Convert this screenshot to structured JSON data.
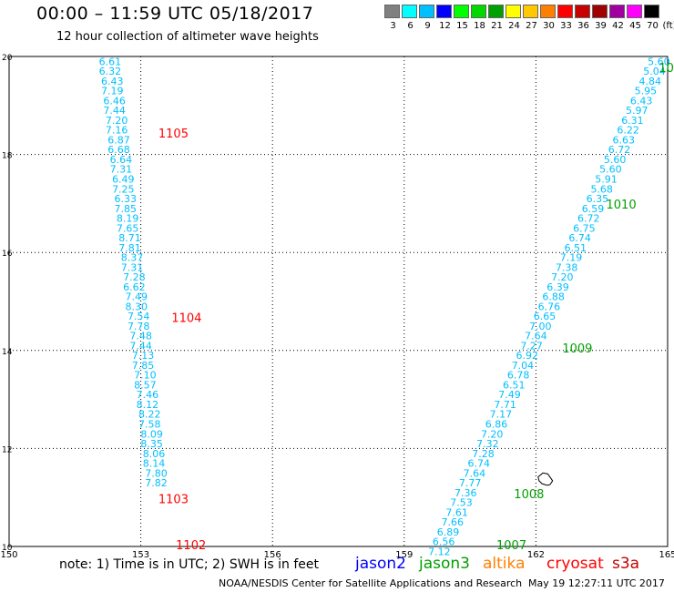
{
  "header": {
    "title": "00:00 – 11:59 UTC 05/18/2017",
    "subtitle": "12 hour collection of altimeter wave heights"
  },
  "colorbar": {
    "labels": [
      "3",
      "6",
      "9",
      "12",
      "15",
      "18",
      "21",
      "24",
      "27",
      "30",
      "33",
      "36",
      "39",
      "42",
      "45",
      "70"
    ],
    "unit": "(ft)",
    "colors": [
      "#808080",
      "#00ffff",
      "#00bfff",
      "#0000ff",
      "#00ff00",
      "#00d800",
      "#00a000",
      "#ffff00",
      "#ffc800",
      "#ff8000",
      "#ff0000",
      "#c80000",
      "#a00000",
      "#a000a0",
      "#ff00ff",
      "#000000"
    ]
  },
  "footer": {
    "note": "note: 1) Time is in UTC; 2) SWH is in feet",
    "satellites": [
      {
        "name": "jason2",
        "color": "#0000ff"
      },
      {
        "name": "jason3",
        "color": "#00a000"
      },
      {
        "name": "altika",
        "color": "#ff8000"
      },
      {
        "name": "cryosat",
        "color": "#ff0000"
      },
      {
        "name": "s3a",
        "color": "#c80000"
      }
    ],
    "credit": "NOAA/NESDIS Center for Satellite Applications and Research",
    "timestamp": "May 19 12:27:11 UTC 2017"
  },
  "chart_data": {
    "type": "scatter",
    "xlim": [
      150,
      165
    ],
    "ylim": [
      10,
      20
    ],
    "x_ticks": [
      "150",
      "153",
      "156",
      "159",
      "162",
      "165"
    ],
    "y_ticks": [
      "10",
      "12",
      "14",
      "16",
      "18",
      "20"
    ],
    "grid": true,
    "value_color": "#00bfff",
    "series": [
      {
        "color": "#00bfff",
        "points": [
          {
            "x": 152.3,
            "y": 19.9,
            "v": "6.61"
          },
          {
            "x": 152.3,
            "y": 19.7,
            "v": "6.32"
          },
          {
            "x": 152.35,
            "y": 19.5,
            "v": "6.43"
          },
          {
            "x": 152.35,
            "y": 19.3,
            "v": "7.19"
          },
          {
            "x": 152.4,
            "y": 19.1,
            "v": "6.46"
          },
          {
            "x": 152.4,
            "y": 18.9,
            "v": "7.44"
          },
          {
            "x": 152.45,
            "y": 18.7,
            "v": "7.20"
          },
          {
            "x": 152.45,
            "y": 18.5,
            "v": "7.16"
          },
          {
            "x": 152.5,
            "y": 18.3,
            "v": "6.87"
          },
          {
            "x": 152.5,
            "y": 18.1,
            "v": "6.68"
          },
          {
            "x": 152.55,
            "y": 17.9,
            "v": "6.64"
          },
          {
            "x": 152.55,
            "y": 17.7,
            "v": "7.31"
          },
          {
            "x": 152.6,
            "y": 17.5,
            "v": "6.49"
          },
          {
            "x": 152.6,
            "y": 17.3,
            "v": "7.25"
          },
          {
            "x": 152.65,
            "y": 17.1,
            "v": "6.33"
          },
          {
            "x": 152.65,
            "y": 16.9,
            "v": "7.85"
          },
          {
            "x": 152.7,
            "y": 16.7,
            "v": "8.19"
          },
          {
            "x": 152.7,
            "y": 16.5,
            "v": "7.65"
          },
          {
            "x": 152.75,
            "y": 16.3,
            "v": "8.71"
          },
          {
            "x": 152.75,
            "y": 16.1,
            "v": "7.81"
          },
          {
            "x": 152.8,
            "y": 15.9,
            "v": "8.37"
          },
          {
            "x": 152.8,
            "y": 15.7,
            "v": "7.31"
          },
          {
            "x": 152.85,
            "y": 15.5,
            "v": "7.28"
          },
          {
            "x": 152.85,
            "y": 15.3,
            "v": "6.62"
          },
          {
            "x": 152.9,
            "y": 15.1,
            "v": "7.49"
          },
          {
            "x": 152.9,
            "y": 14.9,
            "v": "8.30"
          },
          {
            "x": 152.95,
            "y": 14.7,
            "v": "7.54"
          },
          {
            "x": 152.95,
            "y": 14.5,
            "v": "7.78"
          },
          {
            "x": 153.0,
            "y": 14.3,
            "v": "7.48"
          },
          {
            "x": 153.0,
            "y": 14.1,
            "v": "7.44"
          },
          {
            "x": 153.05,
            "y": 13.9,
            "v": "7.13"
          },
          {
            "x": 153.05,
            "y": 13.7,
            "v": "7.85"
          },
          {
            "x": 153.1,
            "y": 13.5,
            "v": "7.10"
          },
          {
            "x": 153.1,
            "y": 13.3,
            "v": "8.57"
          },
          {
            "x": 153.15,
            "y": 13.1,
            "v": "7.46"
          },
          {
            "x": 153.15,
            "y": 12.9,
            "v": "8.12"
          },
          {
            "x": 153.2,
            "y": 12.7,
            "v": "8.22"
          },
          {
            "x": 153.2,
            "y": 12.5,
            "v": "7.58"
          },
          {
            "x": 153.25,
            "y": 12.3,
            "v": "8.09"
          },
          {
            "x": 153.25,
            "y": 12.1,
            "v": "8.35"
          },
          {
            "x": 153.3,
            "y": 11.9,
            "v": "8.06"
          },
          {
            "x": 153.3,
            "y": 11.7,
            "v": "8.14"
          },
          {
            "x": 153.35,
            "y": 11.5,
            "v": "7.80"
          },
          {
            "x": 153.35,
            "y": 11.3,
            "v": "7.82"
          }
        ]
      },
      {
        "color": "#00bfff",
        "points": [
          {
            "x": 164.8,
            "y": 19.9,
            "v": "5.60"
          },
          {
            "x": 164.7,
            "y": 19.7,
            "v": "5.04"
          },
          {
            "x": 164.6,
            "y": 19.5,
            "v": "4.84"
          },
          {
            "x": 164.5,
            "y": 19.3,
            "v": "5.95"
          },
          {
            "x": 164.4,
            "y": 19.1,
            "v": "6.43"
          },
          {
            "x": 164.3,
            "y": 18.9,
            "v": "5.97"
          },
          {
            "x": 164.2,
            "y": 18.7,
            "v": "6.31"
          },
          {
            "x": 164.1,
            "y": 18.5,
            "v": "6.22"
          },
          {
            "x": 164.0,
            "y": 18.3,
            "v": "6.63"
          },
          {
            "x": 163.9,
            "y": 18.1,
            "v": "6.72"
          },
          {
            "x": 163.8,
            "y": 17.9,
            "v": "5.60"
          },
          {
            "x": 163.7,
            "y": 17.7,
            "v": "5.60"
          },
          {
            "x": 163.6,
            "y": 17.5,
            "v": "5.91"
          },
          {
            "x": 163.5,
            "y": 17.3,
            "v": "5.68"
          },
          {
            "x": 163.4,
            "y": 17.1,
            "v": "6.35"
          },
          {
            "x": 163.3,
            "y": 16.9,
            "v": "6.59"
          },
          {
            "x": 163.2,
            "y": 16.7,
            "v": "6.72"
          },
          {
            "x": 163.1,
            "y": 16.5,
            "v": "6.75"
          },
          {
            "x": 163.0,
            "y": 16.3,
            "v": "6.74"
          },
          {
            "x": 162.9,
            "y": 16.1,
            "v": "6.51"
          },
          {
            "x": 162.8,
            "y": 15.9,
            "v": "7.19"
          },
          {
            "x": 162.7,
            "y": 15.7,
            "v": "7.38"
          },
          {
            "x": 162.6,
            "y": 15.5,
            "v": "7.20"
          },
          {
            "x": 162.5,
            "y": 15.3,
            "v": "6.39"
          },
          {
            "x": 162.4,
            "y": 15.1,
            "v": "6.88"
          },
          {
            "x": 162.3,
            "y": 14.9,
            "v": "6.76"
          },
          {
            "x": 162.2,
            "y": 14.7,
            "v": "6.65"
          },
          {
            "x": 162.1,
            "y": 14.5,
            "v": "7.00"
          },
          {
            "x": 162.0,
            "y": 14.3,
            "v": "7.64"
          },
          {
            "x": 161.9,
            "y": 14.1,
            "v": "7.27"
          },
          {
            "x": 161.8,
            "y": 13.9,
            "v": "6.92"
          },
          {
            "x": 161.7,
            "y": 13.7,
            "v": "7.04"
          },
          {
            "x": 161.6,
            "y": 13.5,
            "v": "6.78"
          },
          {
            "x": 161.5,
            "y": 13.3,
            "v": "6.51"
          },
          {
            "x": 161.4,
            "y": 13.1,
            "v": "7.49"
          },
          {
            "x": 161.3,
            "y": 12.9,
            "v": "7.71"
          },
          {
            "x": 161.2,
            "y": 12.7,
            "v": "7.17"
          },
          {
            "x": 161.1,
            "y": 12.5,
            "v": "6.86"
          },
          {
            "x": 161.0,
            "y": 12.3,
            "v": "7.20"
          },
          {
            "x": 160.9,
            "y": 12.1,
            "v": "7.32"
          },
          {
            "x": 160.8,
            "y": 11.9,
            "v": "7.28"
          },
          {
            "x": 160.7,
            "y": 11.7,
            "v": "6.74"
          },
          {
            "x": 160.6,
            "y": 11.5,
            "v": "7.64"
          },
          {
            "x": 160.5,
            "y": 11.3,
            "v": "7.77"
          },
          {
            "x": 160.4,
            "y": 11.1,
            "v": "7.36"
          },
          {
            "x": 160.3,
            "y": 10.9,
            "v": "7.53"
          },
          {
            "x": 160.2,
            "y": 10.7,
            "v": "7.61"
          },
          {
            "x": 160.1,
            "y": 10.5,
            "v": "7.66"
          },
          {
            "x": 160.0,
            "y": 10.3,
            "v": "6.89"
          },
          {
            "x": 159.9,
            "y": 10.1,
            "v": "6.56"
          },
          {
            "x": 159.8,
            "y": 9.9,
            "v": "7.12"
          }
        ]
      }
    ],
    "annotations": [
      {
        "x": 153.4,
        "y": 18.42,
        "text": "1105",
        "color": "#ff0000"
      },
      {
        "x": 153.7,
        "y": 14.66,
        "text": "1104",
        "color": "#ff0000"
      },
      {
        "x": 153.4,
        "y": 10.96,
        "text": "1103",
        "color": "#ff0000"
      },
      {
        "x": 153.8,
        "y": 10.02,
        "text": "1102",
        "color": "#ff0000"
      },
      {
        "x": 164.8,
        "y": 19.76,
        "text": "10",
        "color": "#00a000"
      },
      {
        "x": 163.6,
        "y": 16.97,
        "text": "1010",
        "color": "#00a000"
      },
      {
        "x": 162.6,
        "y": 14.03,
        "text": "1009",
        "color": "#00a000"
      },
      {
        "x": 161.5,
        "y": 11.06,
        "text": "1008",
        "color": "#00a000"
      },
      {
        "x": 161.1,
        "y": 10.02,
        "text": "1007",
        "color": "#00a000"
      }
    ],
    "outline": {
      "color": "#000000",
      "points": [
        [
          162.05,
          11.42
        ],
        [
          162.16,
          11.5
        ],
        [
          162.27,
          11.48
        ],
        [
          162.38,
          11.34
        ],
        [
          162.32,
          11.26
        ],
        [
          162.25,
          11.25
        ],
        [
          162.14,
          11.28
        ],
        [
          162.07,
          11.34
        ]
      ]
    }
  }
}
